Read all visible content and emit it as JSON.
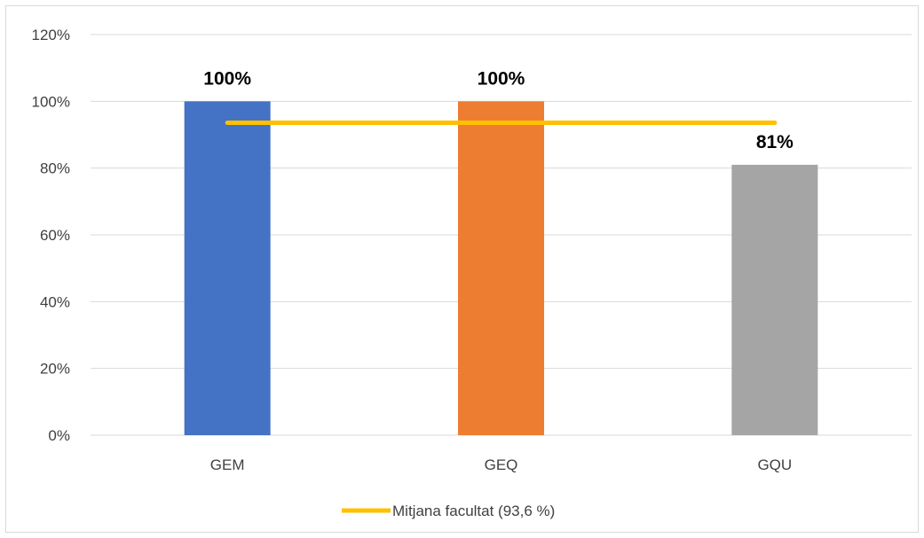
{
  "chart_data": {
    "type": "bar",
    "categories": [
      "GEM",
      "GEQ",
      "GQU"
    ],
    "values": [
      100,
      100,
      81
    ],
    "value_labels": [
      "100%",
      "100%",
      "81%"
    ],
    "colors": [
      "#4472c4",
      "#ed7d31",
      "#a5a5a5"
    ],
    "ylim": [
      0,
      120
    ],
    "yticks": [
      0,
      20,
      40,
      60,
      80,
      100,
      120
    ],
    "ytick_labels": [
      "0%",
      "20%",
      "40%",
      "60%",
      "80%",
      "100%",
      "120%"
    ],
    "grid": true,
    "reference_line": {
      "label": "Mitjana facultat (93,6 %)",
      "value": 93.6,
      "color": "#ffc000"
    },
    "legend_position": "bottom"
  }
}
